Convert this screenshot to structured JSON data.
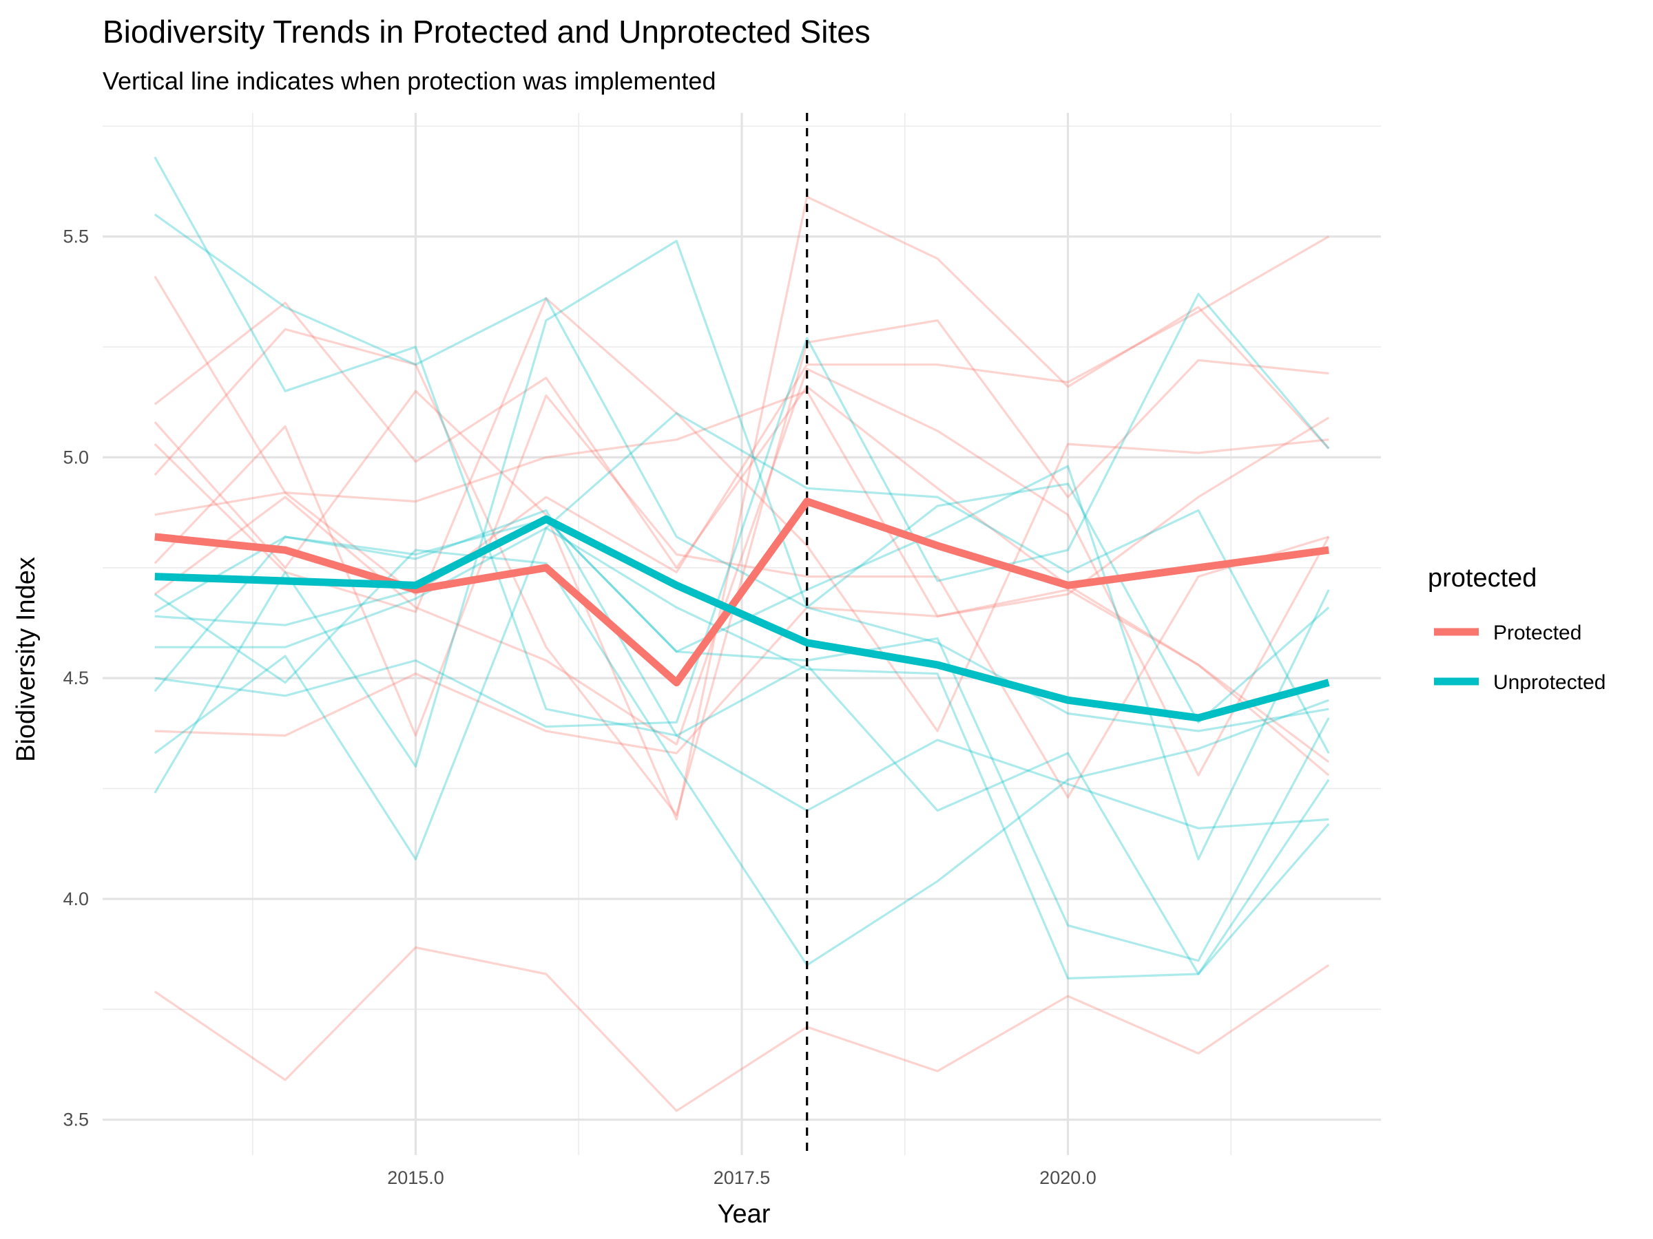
{
  "chart_data": {
    "type": "line",
    "title": "Biodiversity Trends in Protected and Unprotected Sites",
    "subtitle": "Vertical line indicates when protection was implemented",
    "xlabel": "Year",
    "ylabel": "Biodiversity Index",
    "xlim": [
      2012.6,
      2022.4
    ],
    "ylim": [
      3.42,
      5.78
    ],
    "x_ticks": [
      2015.0,
      2017.5,
      2020.0
    ],
    "x_tick_labels": [
      "2015.0",
      "2017.5",
      "2020.0"
    ],
    "y_ticks": [
      3.5,
      4.0,
      4.5,
      5.0,
      5.5
    ],
    "y_tick_labels": [
      "3.5",
      "4.0",
      "4.5",
      "5.0",
      "5.5"
    ],
    "grid": true,
    "vline": {
      "x": 2018,
      "style": "dashed",
      "color": "#000000"
    },
    "legend": {
      "title": "protected",
      "placement": "right",
      "entries": [
        {
          "label": "Protected",
          "color": "#F8766D"
        },
        {
          "label": "Unprotected",
          "color": "#00BFC4"
        }
      ]
    },
    "x": [
      2013,
      2014,
      2015,
      2016,
      2017,
      2018,
      2019,
      2020,
      2021,
      2022
    ],
    "series": [
      {
        "name": "Protected",
        "color": "#F8766D",
        "values": [
          4.82,
          4.79,
          4.7,
          4.75,
          4.49,
          4.9,
          4.8,
          4.71,
          4.75,
          4.79
        ]
      },
      {
        "name": "Unprotected",
        "color": "#00BFC4",
        "values": [
          4.73,
          4.72,
          4.71,
          4.86,
          4.71,
          4.58,
          4.53,
          4.45,
          4.41,
          4.49
        ]
      }
    ],
    "site_series": [
      {
        "group": "Protected",
        "values": [
          3.79,
          3.59,
          3.89,
          3.83,
          3.52,
          3.71,
          3.61,
          3.78,
          3.65,
          3.85
        ]
      },
      {
        "group": "Protected",
        "values": [
          5.41,
          4.92,
          4.69,
          4.91,
          4.74,
          5.21,
          5.21,
          5.17,
          5.33,
          5.5
        ]
      },
      {
        "group": "Protected",
        "values": [
          5.12,
          5.35,
          4.99,
          5.18,
          4.75,
          5.16,
          4.93,
          4.71,
          4.53,
          4.31
        ]
      },
      {
        "group": "Protected",
        "values": [
          4.87,
          4.92,
          4.9,
          5.0,
          5.04,
          5.15,
          4.64,
          4.69,
          4.91,
          5.09
        ]
      },
      {
        "group": "Protected",
        "values": [
          4.38,
          4.37,
          4.51,
          4.38,
          4.33,
          4.66,
          4.64,
          4.7,
          4.53,
          4.28
        ]
      },
      {
        "group": "Protected",
        "values": [
          5.08,
          4.75,
          5.15,
          4.87,
          4.18,
          5.59,
          5.45,
          5.16,
          5.34,
          5.02
        ]
      },
      {
        "group": "Protected",
        "values": [
          4.96,
          5.29,
          5.21,
          4.57,
          4.19,
          5.26,
          5.31,
          4.91,
          5.22,
          5.19
        ]
      },
      {
        "group": "Protected",
        "values": [
          5.03,
          4.74,
          4.65,
          5.36,
          5.1,
          4.8,
          4.38,
          5.03,
          5.01,
          5.04
        ]
      },
      {
        "group": "Protected",
        "values": [
          4.76,
          5.07,
          4.37,
          5.14,
          4.78,
          4.73,
          4.73,
          4.23,
          4.73,
          4.82
        ]
      },
      {
        "group": "Protected",
        "values": [
          4.69,
          4.91,
          4.66,
          4.54,
          4.35,
          5.2,
          5.06,
          4.87,
          4.28,
          4.82
        ]
      },
      {
        "group": "Unprotected",
        "values": [
          5.68,
          5.15,
          5.25,
          4.43,
          4.37,
          4.53,
          4.2,
          4.33,
          3.83,
          4.27
        ]
      },
      {
        "group": "Unprotected",
        "values": [
          5.55,
          5.34,
          5.21,
          5.36,
          4.82,
          4.66,
          4.58,
          4.42,
          4.38,
          4.43
        ]
      },
      {
        "group": "Unprotected",
        "values": [
          4.64,
          4.62,
          4.7,
          4.86,
          4.56,
          4.7,
          4.83,
          4.98,
          4.09,
          4.7
        ]
      },
      {
        "group": "Unprotected",
        "values": [
          4.57,
          4.57,
          4.68,
          4.84,
          4.66,
          4.52,
          4.51,
          3.82,
          3.83,
          4.17
        ]
      },
      {
        "group": "Unprotected",
        "values": [
          4.47,
          4.82,
          4.77,
          4.88,
          4.37,
          4.2,
          4.36,
          4.26,
          4.16,
          4.18
        ]
      },
      {
        "group": "Unprotected",
        "values": [
          4.33,
          4.55,
          4.09,
          4.84,
          5.1,
          4.93,
          4.91,
          4.74,
          4.88,
          4.33
        ]
      },
      {
        "group": "Unprotected",
        "values": [
          4.24,
          4.74,
          4.3,
          5.31,
          5.49,
          4.66,
          4.89,
          4.94,
          4.4,
          4.66
        ]
      },
      {
        "group": "Unprotected",
        "values": [
          4.69,
          4.49,
          4.79,
          4.76,
          4.3,
          3.85,
          4.04,
          4.27,
          4.34,
          4.45
        ]
      },
      {
        "group": "Unprotected",
        "values": [
          4.5,
          4.46,
          4.54,
          4.39,
          4.4,
          5.27,
          4.72,
          4.79,
          5.37,
          5.02
        ]
      },
      {
        "group": "Unprotected",
        "values": [
          4.65,
          4.82,
          4.78,
          4.86,
          4.56,
          4.54,
          4.59,
          3.94,
          3.86,
          4.41
        ]
      }
    ]
  }
}
